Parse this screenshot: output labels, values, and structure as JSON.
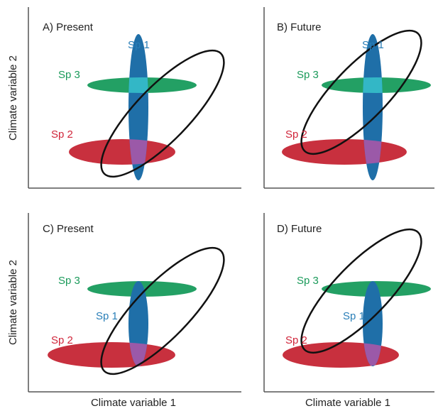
{
  "axes": {
    "y_label": "Climate variable 2",
    "x_label": "Climate variable 1"
  },
  "panels": [
    {
      "id": "A",
      "title": "A) Present"
    },
    {
      "id": "B",
      "title": "B) Future"
    },
    {
      "id": "C",
      "title": "C) Present"
    },
    {
      "id": "D",
      "title": "D) Future"
    }
  ],
  "species": {
    "sp1": {
      "label": "Sp 1",
      "color": "#2a7fb8"
    },
    "sp2": {
      "label": "Sp 2",
      "color": "#d0253a"
    },
    "sp3": {
      "label": "Sp 3",
      "color": "#1a9a5a"
    }
  },
  "colors": {
    "sp1_fill": "#1f6fa8",
    "sp2_fill": "#c8303e",
    "sp3_fill": "#23a064",
    "overlap_sp1_sp2": "#9b59a8",
    "overlap_sp1_sp3": "#33b7c6",
    "envelope_stroke": "#111111",
    "axis": "#555555"
  }
}
